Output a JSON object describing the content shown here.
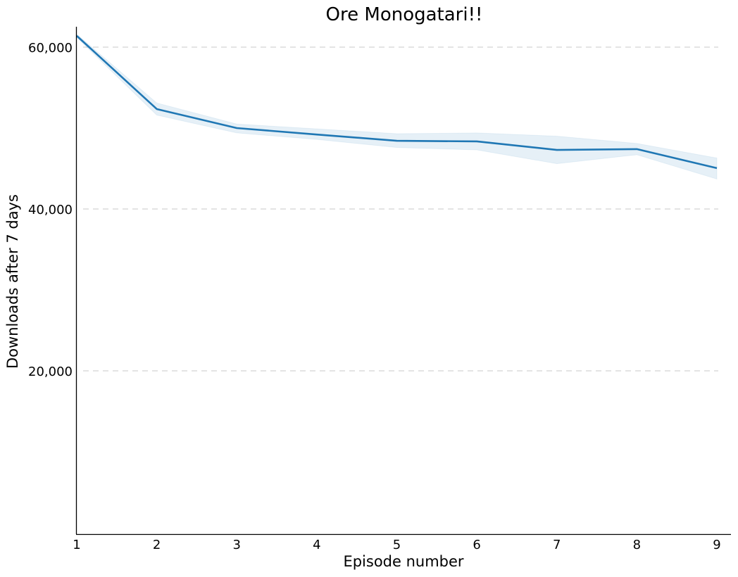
{
  "chart_data": {
    "type": "line",
    "title": "Ore Monogatari!!",
    "xlabel": "Episode number",
    "ylabel": "Downloads after 7 days",
    "x": [
      1,
      2,
      3,
      4,
      5,
      6,
      7,
      8,
      9
    ],
    "series": [
      {
        "name": "Downloads",
        "color": "#1f77b4",
        "values": [
          61400,
          52350,
          50000,
          49200,
          48430,
          48350,
          47300,
          47400,
          45050
        ],
        "ci_upper": [
          61600,
          53100,
          50500,
          49900,
          49300,
          49400,
          49000,
          48100,
          46300
        ],
        "ci_lower": [
          61200,
          51600,
          49400,
          48600,
          47600,
          47300,
          45600,
          46700,
          43700
        ]
      }
    ],
    "xticks": [
      "1",
      "2",
      "3",
      "4",
      "5",
      "6",
      "7",
      "8",
      "9"
    ],
    "yticks": [
      "20,000",
      "40,000",
      "60,000"
    ],
    "ytick_values": [
      20000,
      40000,
      60000
    ],
    "xlim": [
      1,
      9.18
    ],
    "ylim": [
      0,
      62700
    ],
    "grid": "horizontal dashed",
    "legend": "none"
  }
}
